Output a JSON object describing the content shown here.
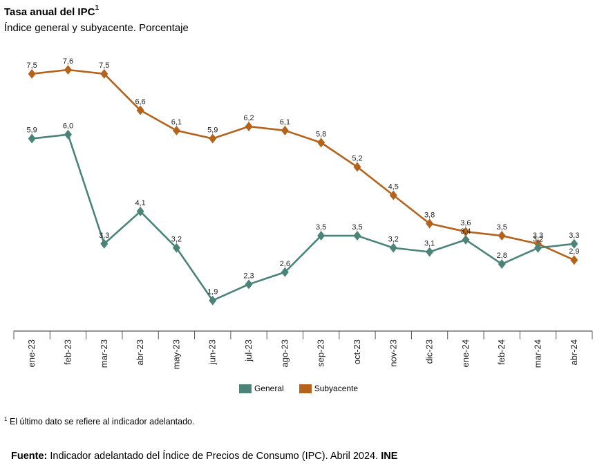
{
  "header": {
    "title": "Tasa anual del IPC",
    "title_sup": "1",
    "subtitle": "Índice general y subyacente. Porcentaje"
  },
  "footnote": {
    "sup": "1",
    "text": "El último dato se refiere al indicador adelantado."
  },
  "source": {
    "label": "Fuente:",
    "text": "Indicador adelantado del Índice de Precios de Consumo (IPC).  Abril 2024. ",
    "org": "INE"
  },
  "colors": {
    "general": "#4a8478",
    "subyacente": "#b5621b",
    "axis": "#555555"
  },
  "chart_data": {
    "type": "line",
    "title": "Tasa anual del IPC",
    "subtitle": "Índice general y subyacente. Porcentaje",
    "categories": [
      "ene-23",
      "feb-23",
      "mar-23",
      "abr-23",
      "may-23",
      "jun-23",
      "jul-23",
      "ago-23",
      "sep-23",
      "oct-23",
      "nov-23",
      "dic-23",
      "ene-24",
      "feb-24",
      "mar-24",
      "abr-24"
    ],
    "series": [
      {
        "name": "General",
        "color": "#4a8478",
        "values": [
          5.9,
          6.0,
          3.3,
          4.1,
          3.2,
          1.9,
          2.3,
          2.6,
          3.5,
          3.5,
          3.2,
          3.1,
          3.4,
          2.8,
          3.2,
          3.3
        ],
        "labels": [
          "5,9",
          "6,0",
          "3,3",
          "4,1",
          "3,2",
          "1,9",
          "2,3",
          "2,6",
          "3,5",
          "3,5",
          "3,2",
          "3,1",
          "3,4",
          "2,8",
          "3,2",
          "3,3"
        ]
      },
      {
        "name": "Subyacente",
        "color": "#b5621b",
        "values": [
          7.5,
          7.6,
          7.5,
          6.6,
          6.1,
          5.9,
          6.2,
          6.1,
          5.8,
          5.2,
          4.5,
          3.8,
          3.6,
          3.5,
          3.3,
          2.9
        ],
        "labels": [
          "7,5",
          "7,6",
          "7,5",
          "6,6",
          "6,1",
          "5,9",
          "6,2",
          "6,1",
          "5,8",
          "5,2",
          "4,5",
          "3,8",
          "3,6",
          "3,5",
          "3,3",
          "2,9"
        ]
      }
    ],
    "xlabel": "",
    "ylabel": "",
    "ylim": [
      0,
      8.3
    ],
    "grid": false,
    "legend": "bottom"
  }
}
